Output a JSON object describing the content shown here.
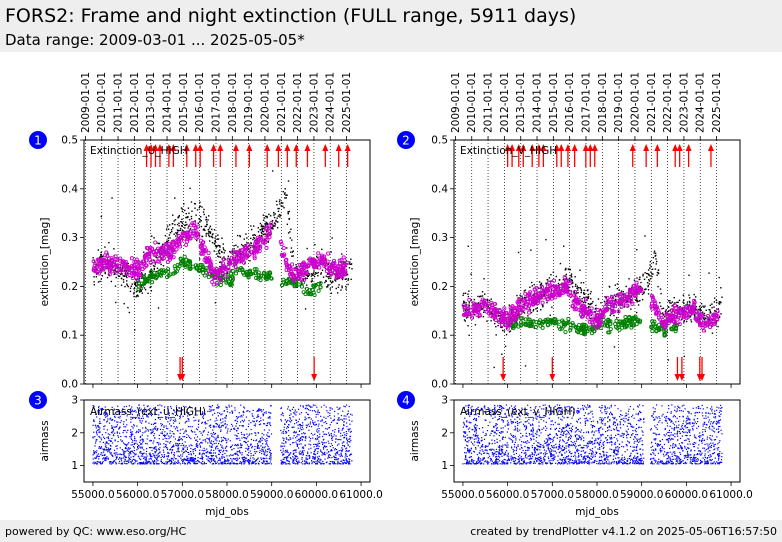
{
  "header": {
    "title": "FORS2: Frame and night extinction (FULL range, 5911 days)",
    "subtitle": "Data range: 2009-03-01 ... 2025-05-05*"
  },
  "footer": {
    "left": "powered by QC: www.eso.org/HC",
    "right": "created by trendPlotter v4.1.2 on 2025-05-06T16:57:50"
  },
  "colors": {
    "frame_points": "#000000",
    "green_points": "#008000",
    "magenta_points": "#cc00cc",
    "outlier_arrows": "#ff0000",
    "airmass_points": "#0000ff",
    "badge": "#0000ff",
    "header_bg": "#eeeeee"
  },
  "chart_data": [
    {
      "panel": "1",
      "type": "scatter",
      "xlabel": "mjd_obs",
      "ylabel": "extinction_[mag]",
      "ylim": [
        0.0,
        0.5
      ],
      "xlim": [
        54800,
        61200
      ],
      "yticks": [
        "0.0",
        "0.1",
        "0.2",
        "0.3",
        "0.4",
        "0.5"
      ],
      "xticks": [
        55000,
        56000,
        57000,
        58000,
        59000,
        60000,
        61000
      ],
      "date_ticks": [
        "2009-01-01",
        "2010-01-01",
        "2011-01-01",
        "2012-01-01",
        "2013-01-01",
        "2014-01-01",
        "2015-01-01",
        "2016-01-01",
        "2017-01-01",
        "2018-01-01",
        "2019-01-01",
        "2020-01-01",
        "2021-01-01",
        "2022-01-01",
        "2023-01-01",
        "2024-01-01",
        "2025-01-01"
      ],
      "annotation": "Extinction_U_HIGH",
      "grid": "vertical dotted at year boundaries",
      "series": [
        {
          "color": "black",
          "x": [
            55000,
            55500,
            56000,
            56300,
            56700,
            57000,
            57300,
            57700,
            58000,
            58300,
            58700,
            59000,
            59200,
            59300,
            59500,
            59800,
            60100,
            60400,
            60700,
            60800
          ],
          "y": [
            0.24,
            0.24,
            0.2,
            0.22,
            0.3,
            0.33,
            0.35,
            0.3,
            0.24,
            0.27,
            0.3,
            0.33,
            0.35,
            0.4,
            0.23,
            0.22,
            0.24,
            0.22,
            0.22,
            0.26
          ]
        },
        {
          "color": "green",
          "x": [
            56000,
            56300,
            56700,
            57000,
            57300,
            57700,
            58000,
            58300,
            59500,
            59800,
            60100
          ],
          "y": [
            0.2,
            0.22,
            0.23,
            0.25,
            0.24,
            0.22,
            0.21,
            0.23,
            0.21,
            0.19,
            0.2
          ]
        },
        {
          "color": "magenta",
          "x": [
            55000,
            55500,
            56000,
            56300,
            56700,
            57000,
            57300,
            57700,
            58000,
            58300,
            58700,
            59000,
            59500,
            59800,
            60100,
            60400,
            60700
          ],
          "y": [
            0.24,
            0.25,
            0.23,
            0.27,
            0.27,
            0.3,
            0.32,
            0.22,
            0.24,
            0.26,
            0.28,
            0.32,
            0.22,
            0.24,
            0.26,
            0.23,
            0.24
          ]
        }
      ],
      "outliers_high_mjd": [
        56200,
        56300,
        56400,
        56500,
        56700,
        56800,
        57100,
        57300,
        57400,
        57700,
        57850,
        58200,
        58500,
        58900,
        59150,
        59350,
        59550,
        59800,
        60200,
        60500,
        60700
      ],
      "outliers_low_mjd": [
        56950,
        57000,
        59950
      ]
    },
    {
      "panel": "2",
      "type": "scatter",
      "xlabel": "mjd_obs",
      "ylabel": "extinction_[mag]",
      "ylim": [
        0.0,
        0.5
      ],
      "xlim": [
        54800,
        61200
      ],
      "yticks": [
        "0.0",
        "0.1",
        "0.2",
        "0.3",
        "0.4",
        "0.5"
      ],
      "xticks": [
        55000,
        56000,
        57000,
        58000,
        59000,
        60000,
        61000
      ],
      "date_ticks": [
        "2009-01-01",
        "2010-01-01",
        "2011-01-01",
        "2012-01-01",
        "2013-01-01",
        "2014-01-01",
        "2015-01-01",
        "2016-01-01",
        "2017-01-01",
        "2018-01-01",
        "2019-01-01",
        "2020-01-01",
        "2021-01-01",
        "2022-01-01",
        "2023-01-01",
        "2024-01-01",
        "2025-01-01"
      ],
      "annotation": "Extinction_V_HIGH",
      "grid": "vertical dotted at year boundaries",
      "series": [
        {
          "color": "black",
          "x": [
            55000,
            55500,
            56000,
            56300,
            56700,
            57000,
            57300,
            57700,
            58000,
            58300,
            58700,
            59000,
            59200,
            59300,
            59500,
            59800,
            60100,
            60400,
            60700,
            60800
          ],
          "y": [
            0.16,
            0.16,
            0.12,
            0.16,
            0.18,
            0.2,
            0.22,
            0.18,
            0.14,
            0.16,
            0.18,
            0.2,
            0.22,
            0.26,
            0.14,
            0.15,
            0.16,
            0.14,
            0.15,
            0.17
          ]
        },
        {
          "color": "green",
          "x": [
            56000,
            56300,
            56700,
            57000,
            57300,
            57700,
            58300,
            58800,
            59500,
            59800
          ],
          "y": [
            0.12,
            0.13,
            0.12,
            0.13,
            0.12,
            0.11,
            0.12,
            0.13,
            0.11,
            0.12
          ]
        },
        {
          "color": "magenta",
          "x": [
            55000,
            55500,
            56000,
            56300,
            56700,
            57000,
            57300,
            57700,
            58000,
            58300,
            58700,
            59000,
            59500,
            59800,
            60100,
            60400,
            60700
          ],
          "y": [
            0.15,
            0.16,
            0.13,
            0.16,
            0.18,
            0.19,
            0.2,
            0.15,
            0.13,
            0.16,
            0.18,
            0.2,
            0.13,
            0.14,
            0.16,
            0.12,
            0.14
          ]
        }
      ],
      "outliers_high_mjd": [
        56000,
        56100,
        56250,
        56350,
        56550,
        56700,
        56800,
        57100,
        57200,
        57350,
        57500,
        57750,
        57850,
        57950,
        58800,
        59100,
        59350,
        59750,
        59850,
        60050,
        60550
      ],
      "outliers_low_mjd": [
        55900,
        57000,
        59800,
        59900,
        60300,
        60350
      ]
    },
    {
      "panel": "3",
      "type": "scatter",
      "xlabel": "mjd_obs",
      "ylabel": "airmass",
      "ylim": [
        0.5,
        3.0
      ],
      "xlim": [
        54800,
        61200
      ],
      "yticks": [
        "1",
        "2",
        "3"
      ],
      "xticks": [
        55000,
        56000,
        57000,
        58000,
        59000,
        60000,
        61000
      ],
      "xtick_labels": [
        "55000.0",
        "56000.0",
        "57000.0",
        "58000.0",
        "59000.0",
        "60000.0",
        "61000.0"
      ],
      "annotation": "Airmass_(ext_u_HIGH)",
      "series": [
        {
          "color": "blue",
          "x_range": [
            55000,
            60800
          ],
          "gap": [
            59000,
            59200
          ],
          "y_range": [
            1.0,
            2.8
          ]
        }
      ]
    },
    {
      "panel": "4",
      "type": "scatter",
      "xlabel": "mjd_obs",
      "ylabel": "airmass",
      "ylim": [
        0.5,
        3.0
      ],
      "xlim": [
        54800,
        61200
      ],
      "yticks": [
        "1",
        "2",
        "3"
      ],
      "xticks": [
        55000,
        56000,
        57000,
        58000,
        59000,
        60000,
        61000
      ],
      "xtick_labels": [
        "55000.0",
        "56000.0",
        "57000.0",
        "58000.0",
        "59000.0",
        "60000.0",
        "61000.0"
      ],
      "annotation": "Airmass_(ext_v_HIGH)",
      "series": [
        {
          "color": "blue",
          "x_range": [
            55000,
            60800
          ],
          "gap": [
            59050,
            59200
          ],
          "y_range": [
            1.0,
            2.8
          ]
        }
      ]
    }
  ]
}
